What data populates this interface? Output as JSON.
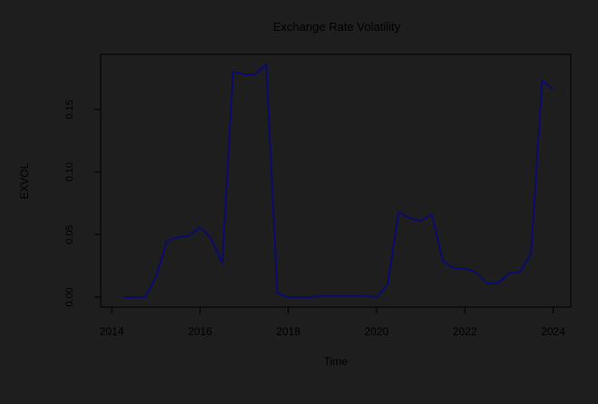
{
  "chart_data": {
    "type": "line",
    "title": "Exchange Rate Volatility",
    "xlabel": "Time",
    "ylabel": "EXVOL",
    "xlim": [
      2013.75,
      2024.4
    ],
    "ylim": [
      -0.008,
      0.194
    ],
    "x_ticks": [
      "2014",
      "2016",
      "2018",
      "2020",
      "2022",
      "2024"
    ],
    "x_tick_values": [
      2014,
      2016,
      2018,
      2020,
      2022,
      2024
    ],
    "y_ticks": [
      "0.00",
      "0.05",
      "0.10",
      "0.15"
    ],
    "y_tick_values": [
      0.0,
      0.05,
      0.1,
      0.15
    ],
    "grid": false,
    "series": [
      {
        "color": "#0b0b6e",
        "x": [
          2014.25,
          2014.5,
          2014.75,
          2015.0,
          2015.25,
          2015.5,
          2015.75,
          2016.0,
          2016.25,
          2016.5,
          2016.75,
          2017.0,
          2017.25,
          2017.5,
          2017.75,
          2018.0,
          2018.25,
          2018.5,
          2018.75,
          2019.0,
          2019.25,
          2019.5,
          2019.75,
          2020.0,
          2020.25,
          2020.5,
          2020.75,
          2021.0,
          2021.25,
          2021.5,
          2021.75,
          2022.0,
          2022.25,
          2022.5,
          2022.75,
          2023.0,
          2023.25,
          2023.5,
          2023.75,
          2024.0
        ],
        "y": [
          0.0,
          0.0,
          0.0,
          0.016,
          0.045,
          0.048,
          0.049,
          0.056,
          0.047,
          0.027,
          0.18,
          0.178,
          0.178,
          0.186,
          0.003,
          0.0,
          0.0,
          0.0,
          0.001,
          0.001,
          0.001,
          0.001,
          0.001,
          0.0,
          0.01,
          0.068,
          0.063,
          0.061,
          0.066,
          0.029,
          0.023,
          0.023,
          0.02,
          0.011,
          0.011,
          0.019,
          0.02,
          0.035,
          0.173,
          0.166
        ]
      }
    ]
  }
}
